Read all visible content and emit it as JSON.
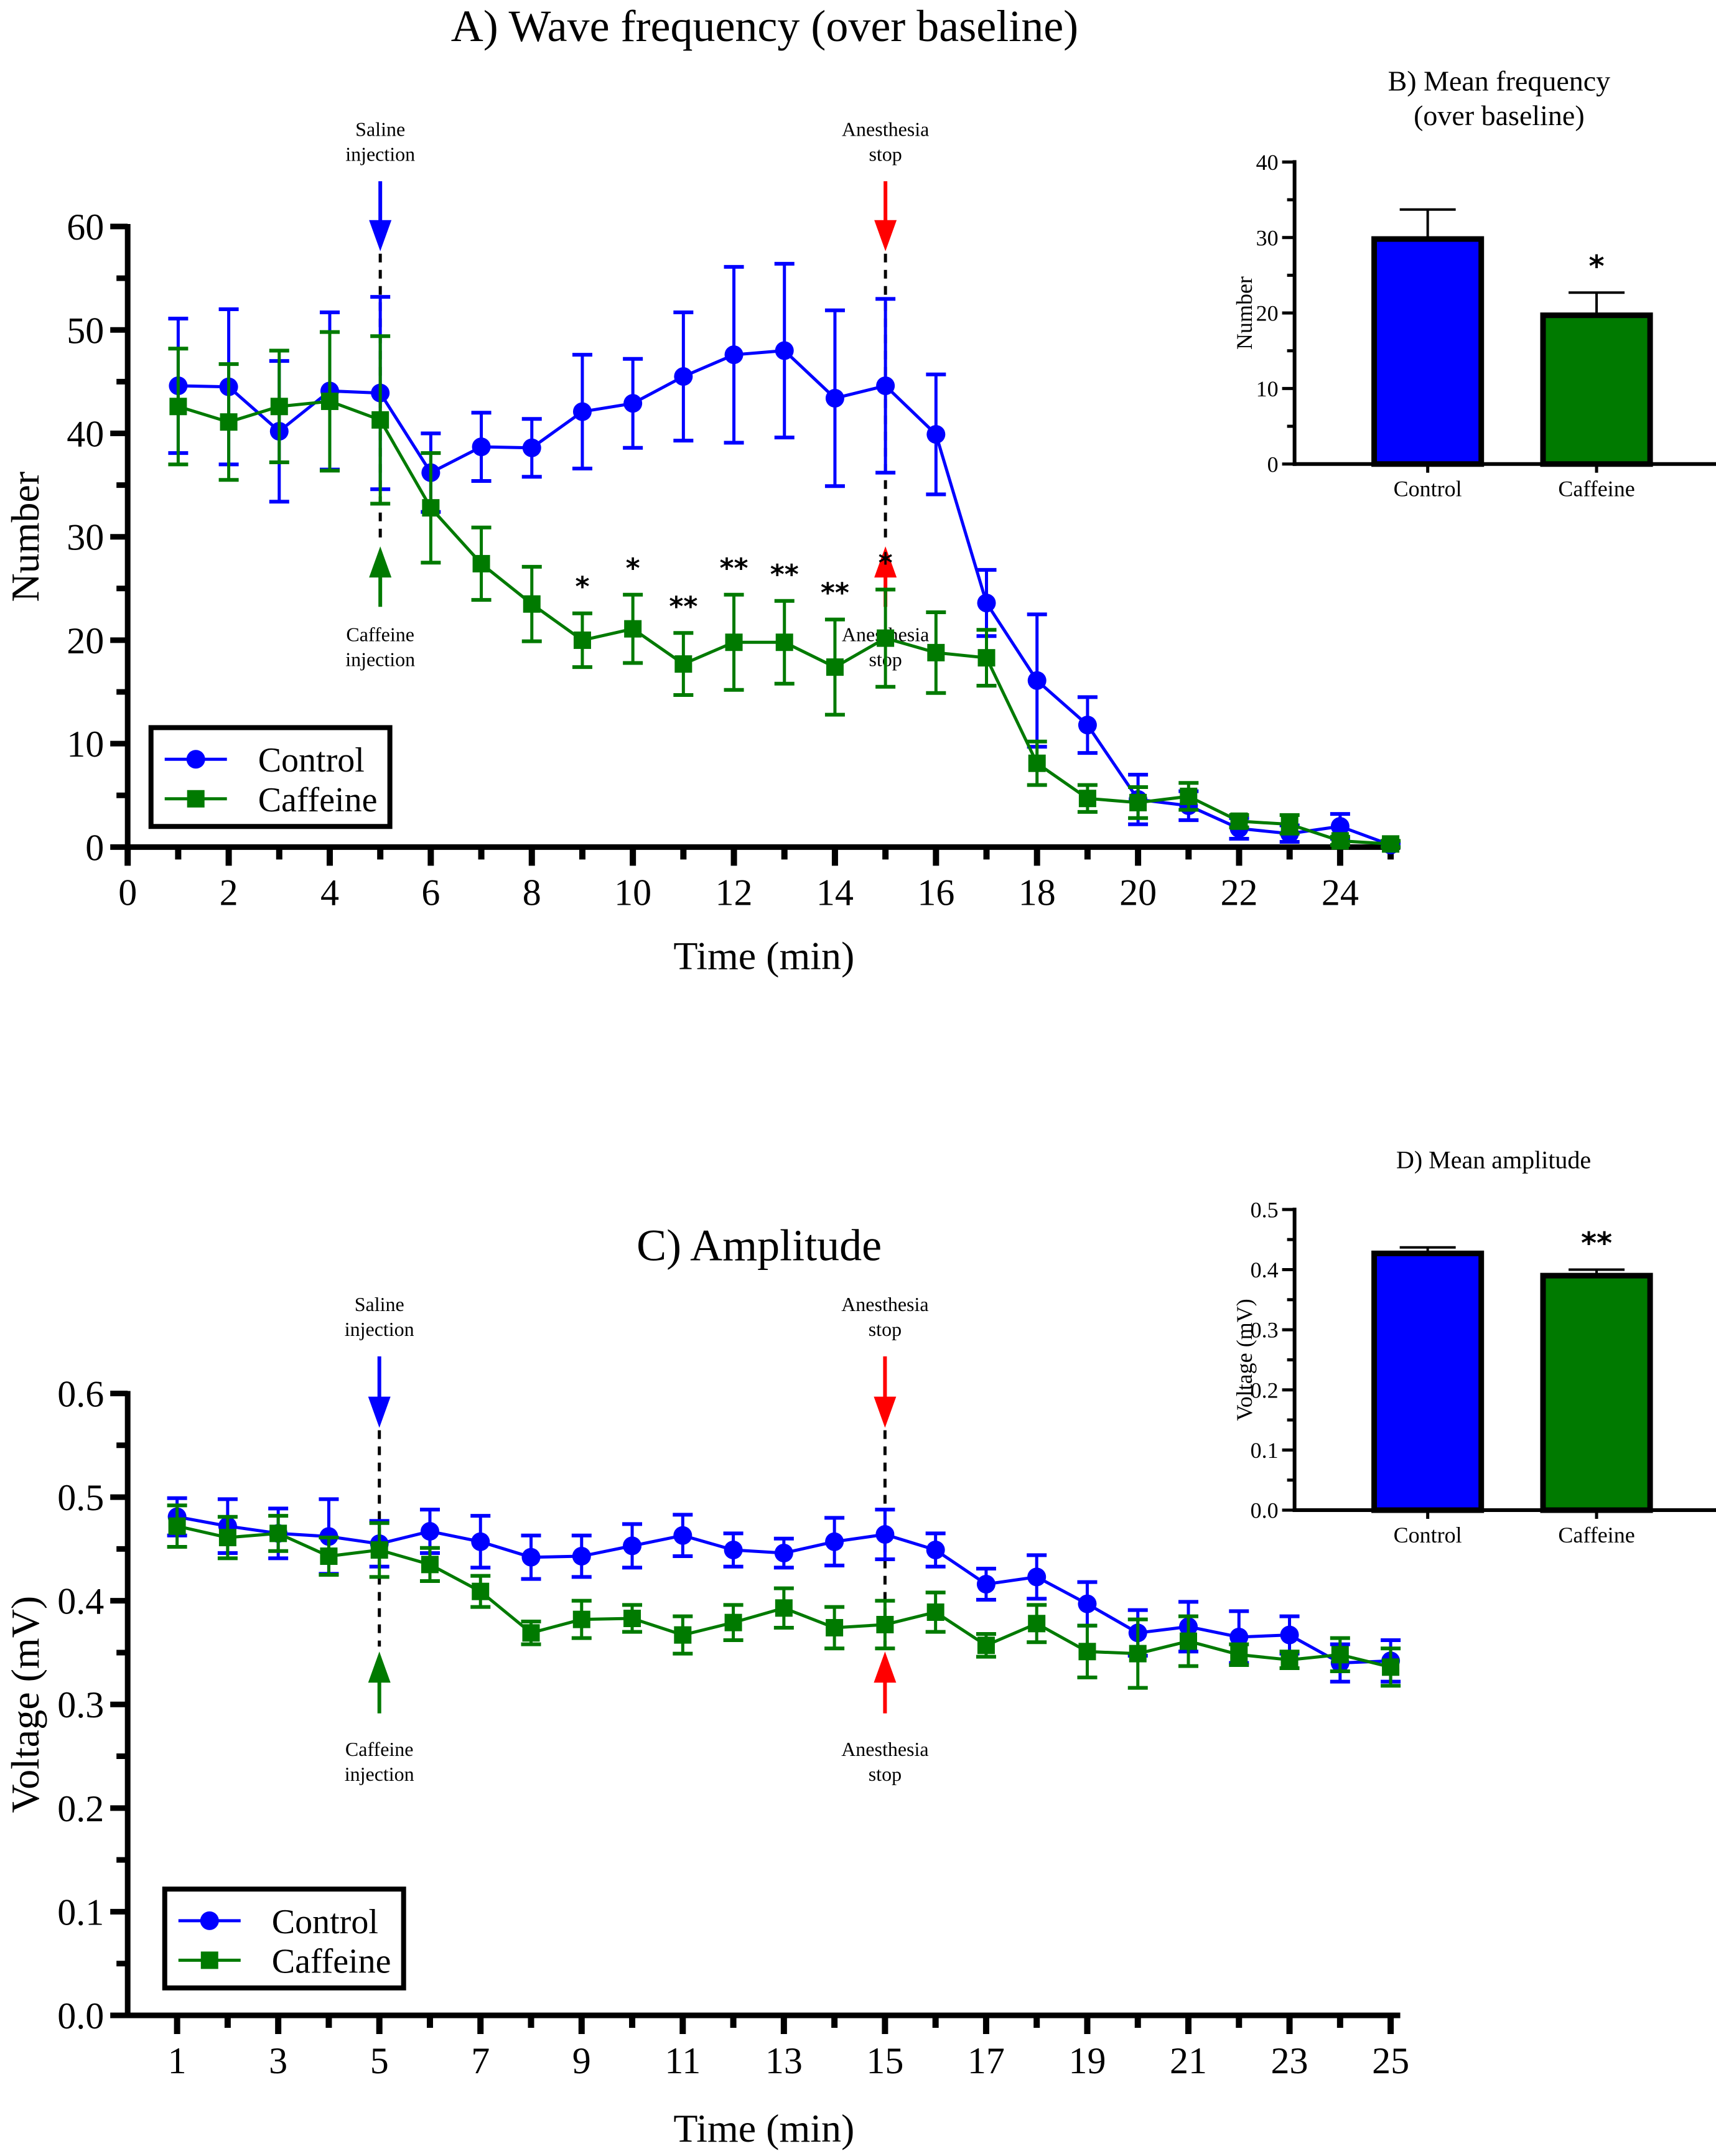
{
  "chart_data": [
    {
      "id": "A",
      "type": "line",
      "title": "A) Wave frequency (over baseline)",
      "xlabel": "Time (min)",
      "ylabel": "Number",
      "xlim": [
        0,
        25
      ],
      "ylim": [
        0,
        60
      ],
      "xticks": [
        0,
        2,
        4,
        6,
        8,
        10,
        12,
        14,
        16,
        18,
        20,
        22,
        24
      ],
      "yticks": [
        0,
        10,
        20,
        30,
        40,
        50,
        60
      ],
      "grid": false,
      "legend": {
        "placement": "bottom-left",
        "entries": [
          "Control",
          "Caffeine"
        ]
      },
      "x": [
        1,
        2,
        3,
        4,
        5,
        6,
        7,
        8,
        9,
        10,
        11,
        12,
        13,
        14,
        15,
        16,
        17,
        18,
        19,
        20,
        21,
        22,
        23,
        24,
        25
      ],
      "series": [
        {
          "name": "Control",
          "color": "#0000ff",
          "marker": "circle",
          "values": [
            44.6,
            44.5,
            40.2,
            44.1,
            43.9,
            36.2,
            38.7,
            38.6,
            42.1,
            42.9,
            45.5,
            47.6,
            48.0,
            43.4,
            44.6,
            39.9,
            23.6,
            16.1,
            11.8,
            4.6,
            4.0,
            1.8,
            1.3,
            2.0,
            0.2
          ],
          "error": [
            6.5,
            7.5,
            6.8,
            7.6,
            9.3,
            3.8,
            3.3,
            2.8,
            5.5,
            4.3,
            6.2,
            8.5,
            8.4,
            8.5,
            8.4,
            5.8,
            3.2,
            6.4,
            2.7,
            2.4,
            1.4,
            1.0,
            0.8,
            1.2,
            0.2
          ]
        },
        {
          "name": "Caffeine",
          "color": "#007a00",
          "marker": "square",
          "values": [
            42.6,
            41.1,
            42.6,
            43.1,
            41.3,
            32.8,
            27.4,
            23.5,
            20.0,
            21.1,
            17.7,
            19.8,
            19.8,
            17.4,
            20.2,
            18.8,
            18.3,
            8.1,
            4.7,
            4.3,
            4.9,
            2.5,
            2.2,
            0.6,
            0.3
          ],
          "error": [
            5.6,
            5.6,
            5.4,
            6.7,
            8.1,
            5.3,
            3.5,
            3.6,
            2.6,
            3.3,
            3.0,
            4.6,
            4.0,
            4.6,
            4.7,
            3.9,
            2.7,
            2.1,
            1.3,
            1.5,
            1.3,
            0.6,
            0.9,
            0.4,
            0.3
          ]
        }
      ],
      "significance": [
        {
          "x": 9,
          "label": "*"
        },
        {
          "x": 10,
          "label": "*"
        },
        {
          "x": 11,
          "label": "**"
        },
        {
          "x": 12,
          "label": "**"
        },
        {
          "x": 13,
          "label": "**"
        },
        {
          "x": 14,
          "label": "**"
        },
        {
          "x": 15,
          "label": "*"
        }
      ],
      "annotations": [
        {
          "x": 5,
          "text_lines": [
            "Saline",
            "injection"
          ],
          "arrow": "down",
          "color": "#0000ff",
          "position": "top"
        },
        {
          "x": 5,
          "text_lines": [
            "Caffeine",
            "injection"
          ],
          "arrow": "up",
          "color": "#007a00",
          "position": "bottom"
        },
        {
          "x": 15,
          "text_lines": [
            "Anesthesia",
            "stop"
          ],
          "arrow": "down",
          "color": "#ff0000",
          "position": "top"
        },
        {
          "x": 15,
          "text_lines": [
            "Anesthesia",
            "stop"
          ],
          "arrow": "up",
          "color": "#ff0000",
          "position": "bottom"
        }
      ]
    },
    {
      "id": "B",
      "type": "bar",
      "title_lines": [
        "B) Mean frequency",
        "(over baseline)"
      ],
      "xlabel": "",
      "ylabel": "Number",
      "ylim": [
        0,
        40
      ],
      "yticks": [
        0,
        10,
        20,
        30,
        40
      ],
      "categories": [
        "Control",
        "Caffeine"
      ],
      "values": [
        29.8,
        19.7
      ],
      "error": [
        3.9,
        3.0
      ],
      "colors": [
        "#0000ff",
        "#007a00"
      ],
      "significance": [
        "",
        "*"
      ]
    },
    {
      "id": "C",
      "type": "line",
      "title": "C) Amplitude",
      "xlabel": "Time (min)",
      "ylabel": "Voltage (mV)",
      "xlim": [
        1,
        25
      ],
      "ylim": [
        0,
        0.6
      ],
      "xticks": [
        1,
        3,
        5,
        7,
        9,
        11,
        13,
        15,
        17,
        19,
        21,
        23,
        25
      ],
      "yticks": [
        "0.0",
        "0.1",
        "0.2",
        "0.3",
        "0.4",
        "0.5",
        "0.6"
      ],
      "grid": false,
      "legend": {
        "placement": "bottom-left",
        "entries": [
          "Control",
          "Caffeine"
        ]
      },
      "x": [
        1,
        2,
        3,
        4,
        5,
        6,
        7,
        8,
        9,
        10,
        11,
        12,
        13,
        14,
        15,
        16,
        17,
        18,
        19,
        20,
        21,
        22,
        23,
        24,
        25
      ],
      "series": [
        {
          "name": "Control",
          "color": "#0000ff",
          "marker": "circle",
          "values": [
            0.481,
            0.472,
            0.465,
            0.462,
            0.455,
            0.467,
            0.457,
            0.442,
            0.443,
            0.453,
            0.463,
            0.449,
            0.446,
            0.457,
            0.464,
            0.449,
            0.416,
            0.423,
            0.397,
            0.369,
            0.375,
            0.365,
            0.367,
            0.34,
            0.342
          ],
          "error": [
            0.018,
            0.026,
            0.024,
            0.036,
            0.022,
            0.021,
            0.025,
            0.021,
            0.02,
            0.021,
            0.02,
            0.016,
            0.014,
            0.023,
            0.024,
            0.016,
            0.015,
            0.021,
            0.021,
            0.022,
            0.024,
            0.025,
            0.018,
            0.018,
            0.02
          ]
        },
        {
          "name": "Caffeine",
          "color": "#007a00",
          "marker": "square",
          "values": [
            0.472,
            0.461,
            0.465,
            0.443,
            0.449,
            0.435,
            0.409,
            0.369,
            0.382,
            0.383,
            0.367,
            0.379,
            0.393,
            0.374,
            0.377,
            0.389,
            0.357,
            0.378,
            0.351,
            0.349,
            0.361,
            0.348,
            0.343,
            0.348,
            0.336
          ],
          "error": [
            0.02,
            0.02,
            0.017,
            0.018,
            0.026,
            0.016,
            0.015,
            0.011,
            0.018,
            0.013,
            0.018,
            0.017,
            0.019,
            0.02,
            0.023,
            0.019,
            0.011,
            0.018,
            0.025,
            0.033,
            0.024,
            0.01,
            0.008,
            0.016,
            0.018
          ]
        }
      ],
      "annotations": [
        {
          "x": 5,
          "text_lines": [
            "Saline",
            "injection"
          ],
          "arrow": "down",
          "color": "#0000ff",
          "position": "top"
        },
        {
          "x": 5,
          "text_lines": [
            "Caffeine",
            "injection"
          ],
          "arrow": "up",
          "color": "#007a00",
          "position": "bottom"
        },
        {
          "x": 15,
          "text_lines": [
            "Anesthesia",
            "stop"
          ],
          "arrow": "down",
          "color": "#ff0000",
          "position": "top"
        },
        {
          "x": 15,
          "text_lines": [
            "Anesthesia",
            "stop"
          ],
          "arrow": "up",
          "color": "#ff0000",
          "position": "bottom"
        }
      ]
    },
    {
      "id": "D",
      "type": "bar",
      "title_lines": [
        "D) Mean amplitude"
      ],
      "xlabel": "",
      "ylabel": "Voltage (mV)",
      "ylim": [
        0,
        0.5
      ],
      "yticks": [
        "0.0",
        "0.1",
        "0.2",
        "0.3",
        "0.4",
        "0.5"
      ],
      "categories": [
        "Control",
        "Caffeine"
      ],
      "values": [
        0.427,
        0.39
      ],
      "error": [
        0.01,
        0.01
      ],
      "colors": [
        "#0000ff",
        "#007a00"
      ],
      "significance": [
        "",
        "**"
      ]
    }
  ]
}
